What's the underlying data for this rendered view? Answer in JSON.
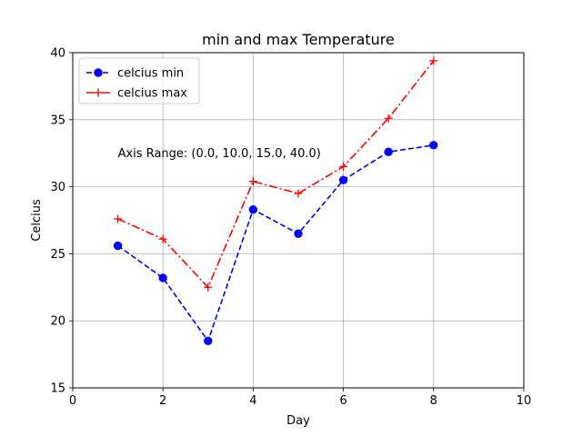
{
  "chart_data": {
    "type": "line",
    "title": "min and max Temperature",
    "xlabel": "Day",
    "ylabel": "Celcius",
    "xlim": [
      0,
      10
    ],
    "ylim": [
      15,
      40
    ],
    "xticks": [
      0,
      2,
      4,
      6,
      8,
      10
    ],
    "yticks": [
      15,
      20,
      25,
      30,
      35,
      40
    ],
    "grid": true,
    "legend_position": "top-left",
    "annotation": {
      "text": "Axis Range: (0.0, 10.0, 15.0, 40.0)",
      "x": 1,
      "y": 32.2
    },
    "series": [
      {
        "name": "celcius min",
        "color": "#0000ff",
        "line_style": "dashed",
        "marker": "circle",
        "x": [
          1,
          2,
          3,
          4,
          5,
          6,
          7,
          8
        ],
        "y": [
          25.6,
          23.2,
          18.5,
          28.3,
          26.5,
          30.5,
          32.6,
          33.1
        ]
      },
      {
        "name": "celcius max",
        "color": "#ff0000",
        "line_style": "dashdot",
        "marker": "plus",
        "x": [
          1,
          2,
          3,
          4,
          5,
          6,
          7,
          8
        ],
        "y": [
          27.6,
          26.1,
          22.5,
          30.4,
          29.5,
          31.5,
          35.1,
          39.4
        ]
      }
    ]
  }
}
